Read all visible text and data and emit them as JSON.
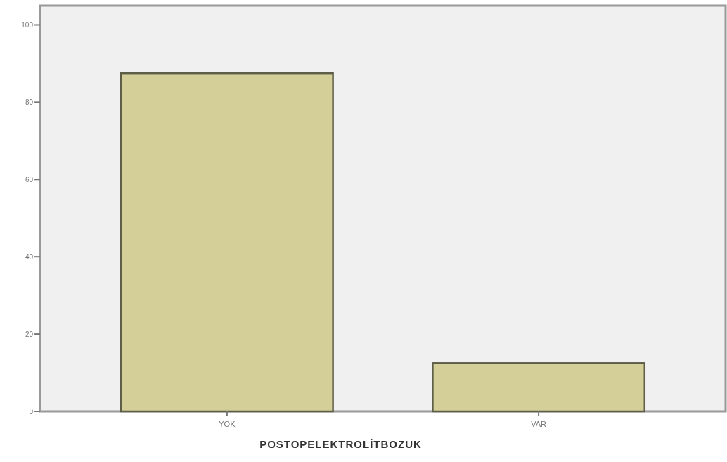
{
  "chart_data": {
    "type": "bar",
    "xlabel": "POSTOPELEKTROLİTBOZUK",
    "categories": [
      "YOK",
      "VAR"
    ],
    "values": [
      87.5,
      12.5
    ],
    "color": "#d4cf98",
    "ylim": [
      0,
      105
    ],
    "yticks": [
      0,
      20,
      40,
      60,
      80,
      100
    ],
    "grid": false
  }
}
